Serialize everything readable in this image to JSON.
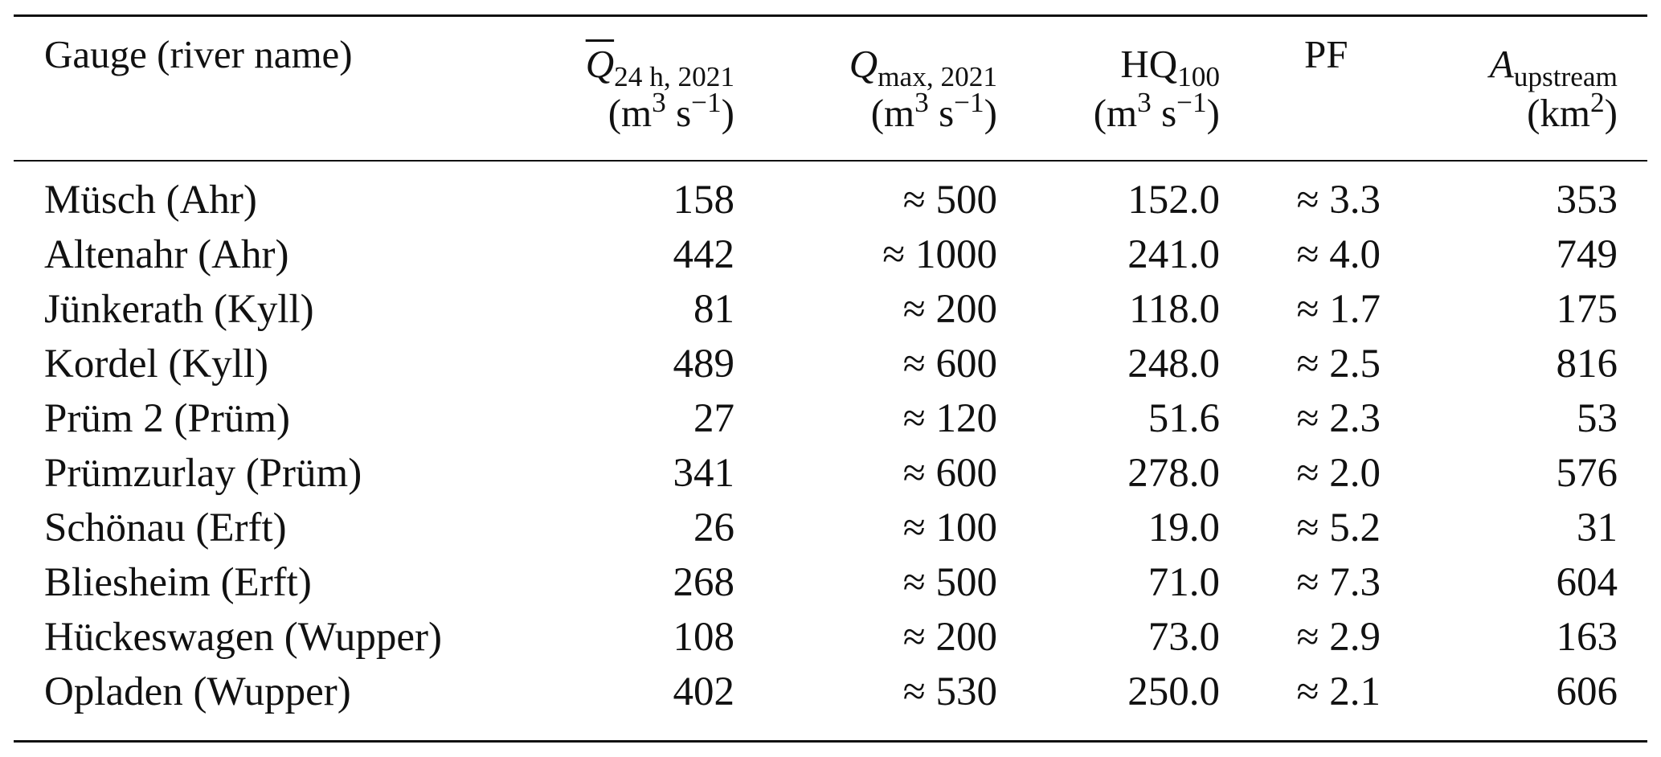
{
  "table": {
    "headers": {
      "gauge": "Gauge (river name)",
      "q24": {
        "symbol": "Q",
        "sub": "24 h, 2021",
        "unit_a": "(m",
        "unit_sup": "3",
        "unit_b": " s",
        "unit_sup2": "−1",
        "unit_c": ")"
      },
      "qmax": {
        "symbol": "Q",
        "sub": "max, 2021",
        "unit_a": "(m",
        "unit_sup": "3",
        "unit_b": " s",
        "unit_sup2": "−1",
        "unit_c": ")"
      },
      "hq": {
        "symbol": "HQ",
        "sub": "100",
        "unit_a": "(m",
        "unit_sup": "3",
        "unit_b": " s",
        "unit_sup2": "−1",
        "unit_c": ")"
      },
      "pf": "PF",
      "area": {
        "symbol": "A",
        "sub": "upstream",
        "unit_a": "(km",
        "unit_sup": "2",
        "unit_c": ")"
      }
    },
    "rows": [
      {
        "gauge": "Müsch (Ahr)",
        "q24": "158",
        "qmax": "≈ 500",
        "hq": "152.0",
        "pf": "≈ 3.3",
        "area": "353"
      },
      {
        "gauge": "Altenahr (Ahr)",
        "q24": "442",
        "qmax": "≈ 1000",
        "hq": "241.0",
        "pf": "≈ 4.0",
        "area": "749"
      },
      {
        "gauge": "Jünkerath (Kyll)",
        "q24": "81",
        "qmax": "≈ 200",
        "hq": "118.0",
        "pf": "≈ 1.7",
        "area": "175"
      },
      {
        "gauge": "Kordel (Kyll)",
        "q24": "489",
        "qmax": "≈ 600",
        "hq": "248.0",
        "pf": "≈ 2.5",
        "area": "816"
      },
      {
        "gauge": "Prüm 2 (Prüm)",
        "q24": "27",
        "qmax": "≈ 120",
        "hq": "51.6",
        "pf": "≈ 2.3",
        "area": "53"
      },
      {
        "gauge": "Prümzurlay (Prüm)",
        "q24": "341",
        "qmax": "≈ 600",
        "hq": "278.0",
        "pf": "≈ 2.0",
        "area": "576"
      },
      {
        "gauge": "Schönau (Erft)",
        "q24": "26",
        "qmax": "≈ 100",
        "hq": "19.0",
        "pf": "≈ 5.2",
        "area": "31"
      },
      {
        "gauge": "Bliesheim (Erft)",
        "q24": "268",
        "qmax": "≈ 500",
        "hq": "71.0",
        "pf": "≈ 7.3",
        "area": "604"
      },
      {
        "gauge": "Hückeswagen (Wupper)",
        "q24": "108",
        "qmax": "≈ 200",
        "hq": "73.0",
        "pf": "≈ 2.9",
        "area": "163"
      },
      {
        "gauge": "Opladen (Wupper)",
        "q24": "402",
        "qmax": "≈ 530",
        "hq": "250.0",
        "pf": "≈ 2.1",
        "area": "606"
      }
    ]
  }
}
